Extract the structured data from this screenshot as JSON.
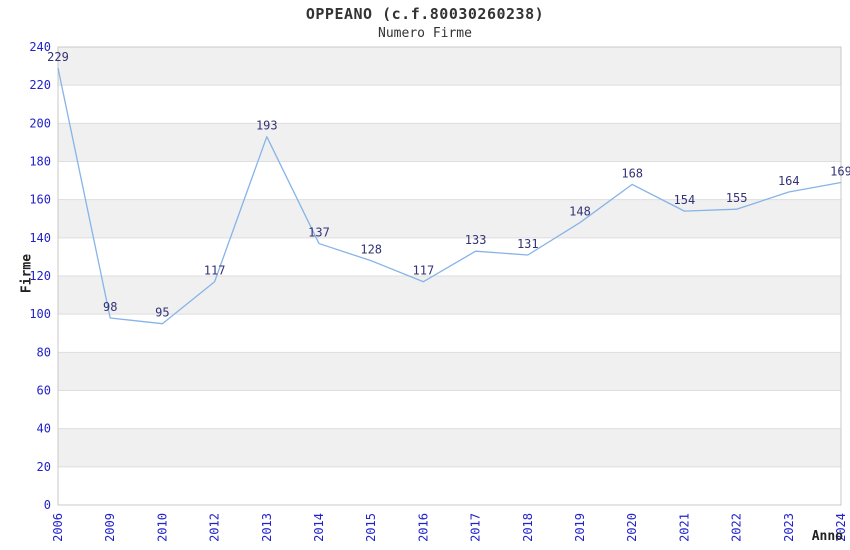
{
  "chart_data": {
    "type": "line",
    "title": "OPPEANO (c.f.80030260238)",
    "subtitle": "Numero Firme",
    "xlabel": "Anno",
    "ylabel": "Firme",
    "categories": [
      "2006",
      "2009",
      "2010",
      "2012",
      "2013",
      "2014",
      "2015",
      "2016",
      "2017",
      "2018",
      "2019",
      "2020",
      "2021",
      "2022",
      "2023",
      "2024"
    ],
    "values": [
      229,
      98,
      95,
      117,
      193,
      137,
      128,
      117,
      133,
      131,
      148,
      168,
      154,
      155,
      164,
      169
    ],
    "ylim": [
      0,
      240
    ],
    "ytick_step": 20,
    "grid": "alternating-horizontal-bands",
    "legend": "none",
    "data_labels_shown": true,
    "x_tick_rotation": -90,
    "colors": {
      "line": "#86b4e8",
      "tick_labels": "#2222cc",
      "data_labels": "#333377",
      "band": "#f0f0f0",
      "grid_line": "#dedede",
      "plot_border": "#c9c9c9",
      "title": "#333333",
      "background": "#ffffff"
    }
  }
}
